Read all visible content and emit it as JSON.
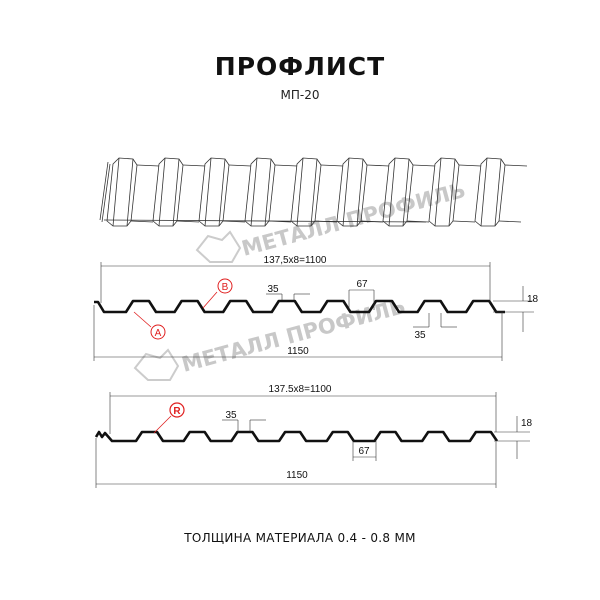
{
  "header": {
    "title": "ПРОФЛИСТ",
    "subtitle": "МП-20"
  },
  "watermark": {
    "text": "МЕТАЛЛ ПРОФИЛЬ",
    "color": "#c8c8c8"
  },
  "profile_a": {
    "pitch_label": "137,5x8=1100",
    "total_width": "1150",
    "top_width": "35",
    "bottom_width": "35",
    "rib_width": "67",
    "height": "18",
    "marker_a": "A",
    "marker_b": "B"
  },
  "profile_b": {
    "pitch_label": "137.5x8=1100",
    "total_width": "1150",
    "top_width": "35",
    "rib_width": "67",
    "height": "18",
    "marker_r": "R"
  },
  "footer": {
    "thickness": "ТОЛЩИНА МАТЕРИАЛА 0.4 - 0.8 ММ"
  },
  "colors": {
    "marker": "#e02020",
    "line": "#111111"
  }
}
